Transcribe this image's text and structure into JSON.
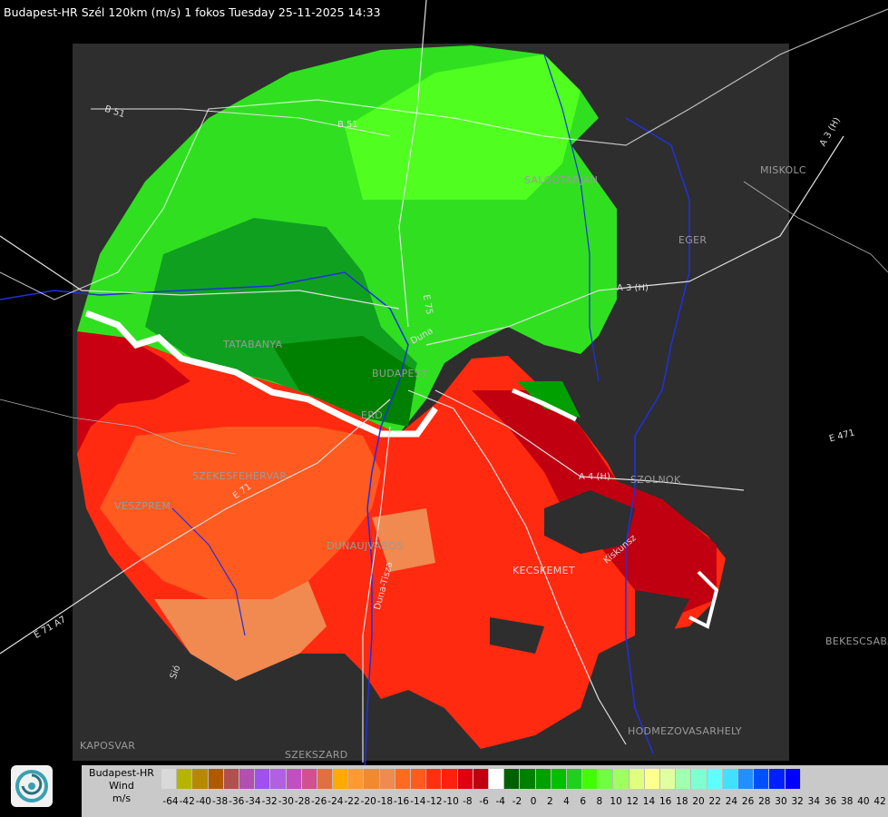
{
  "header": {
    "title": "Budapest-HR Szél 120km (m/s) 1 fokos Tuesday 25-11-2025 14:33"
  },
  "places": [
    {
      "name": "TATABANYA"
    },
    {
      "name": "BUDAPEST"
    },
    {
      "name": "ERD"
    },
    {
      "name": "SZEKESFEHERVAR"
    },
    {
      "name": "VESZPREM"
    },
    {
      "name": "DUNAUJVAROS"
    },
    {
      "name": "KECSKEMET"
    },
    {
      "name": "SZOLNOK"
    },
    {
      "name": "SALGOTARJAN"
    },
    {
      "name": "EGER"
    },
    {
      "name": "MISKOLC"
    },
    {
      "name": "BEKESCSABA"
    },
    {
      "name": "HODMEZOVASARHELY"
    },
    {
      "name": "KAPOSVAR"
    },
    {
      "name": "SZEKSZARD"
    }
  ],
  "roads": [
    "B 51",
    "B 51",
    "A 3 (H)",
    "A 3 (H)",
    "A 4 (H)",
    "E 71",
    "E 471",
    "E 71 A7",
    "E 75",
    "Kiskunsz",
    "Duna-Tisza",
    "Duna",
    "Sió"
  ],
  "legend": {
    "title_lines": [
      "Budapest-HR",
      "Wind",
      "m/s"
    ],
    "colors": [
      "#d9d9d9",
      "#b5b500",
      "#b58a00",
      "#b05a00",
      "#b05050",
      "#b050b0",
      "#a050f0",
      "#b060e0",
      "#c050c0",
      "#d05090",
      "#e07040",
      "#ffaa00",
      "#ff9a30",
      "#f08a30",
      "#f08a50",
      "#ff6a20",
      "#ff5a20",
      "#ff3010",
      "#ff2010",
      "#e00010",
      "#c00010",
      "#ffffff",
      "#006000",
      "#008000",
      "#00a000",
      "#00c000",
      "#20d020",
      "#40ff00",
      "#70ff40",
      "#a0ff60",
      "#e0ff80",
      "#ffff90",
      "#e0ffa0",
      "#a0ffb0",
      "#80ffd0",
      "#60ffff",
      "#40e0ff",
      "#2090ff",
      "#0050ff",
      "#0020ff",
      "#0000ff"
    ],
    "ticks": [
      "-64",
      "-42",
      "-40",
      "-38",
      "-36",
      "-34",
      "-32",
      "-30",
      "-28",
      "-26",
      "-24",
      "-22",
      "-20",
      "-18",
      "-16",
      "-14",
      "-12",
      "-10",
      "-8",
      "-6",
      "-4",
      "-2",
      "0",
      "2",
      "4",
      "6",
      "8",
      "10",
      "12",
      "14",
      "16",
      "18",
      "20",
      "22",
      "24",
      "26",
      "28",
      "30",
      "32",
      "34",
      "36",
      "38",
      "40",
      "42"
    ]
  }
}
